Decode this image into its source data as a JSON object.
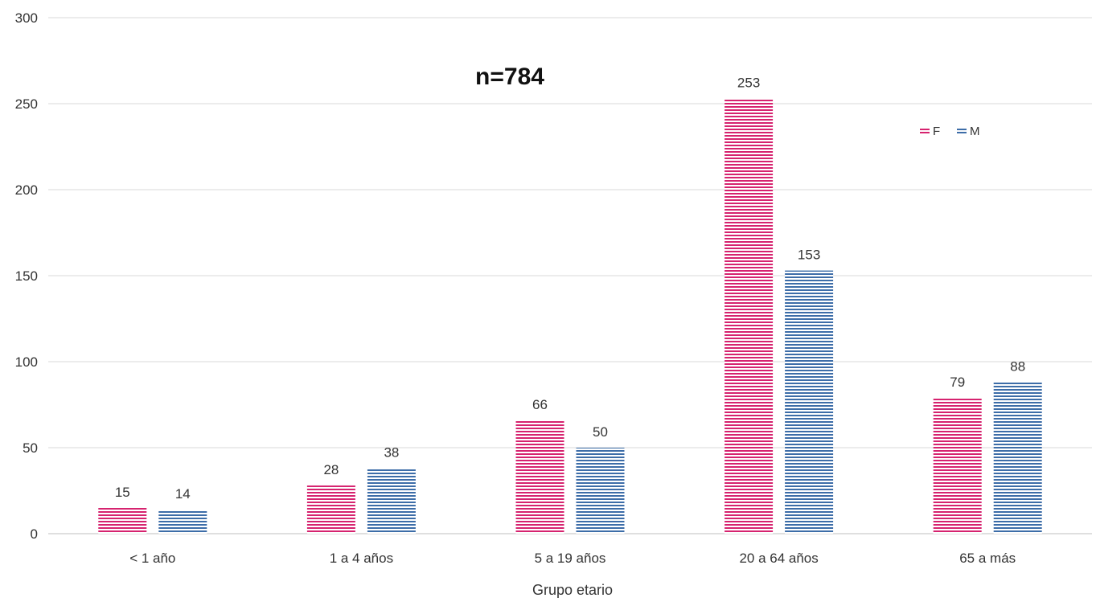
{
  "chart_data": {
    "type": "bar",
    "title": "n=784",
    "xlabel": "Grupo etario",
    "ylabel": "",
    "categories": [
      "< 1 año",
      "1 a 4 años",
      "5 a 19 años",
      "20 a 64 años",
      "65 a más"
    ],
    "series": [
      {
        "name": "F",
        "values": [
          15,
          28,
          66,
          253,
          79
        ],
        "color": "#d6236f"
      },
      {
        "name": "M",
        "values": [
          14,
          38,
          50,
          153,
          88
        ],
        "color": "#3d6da8"
      }
    ],
    "ylim": [
      0,
      300
    ],
    "yticks": [
      "0",
      "50",
      "100",
      "150",
      "200",
      "250",
      "300"
    ],
    "grid": true,
    "legend_position": "top-right",
    "bar_pattern": "horizontal-stripes"
  }
}
